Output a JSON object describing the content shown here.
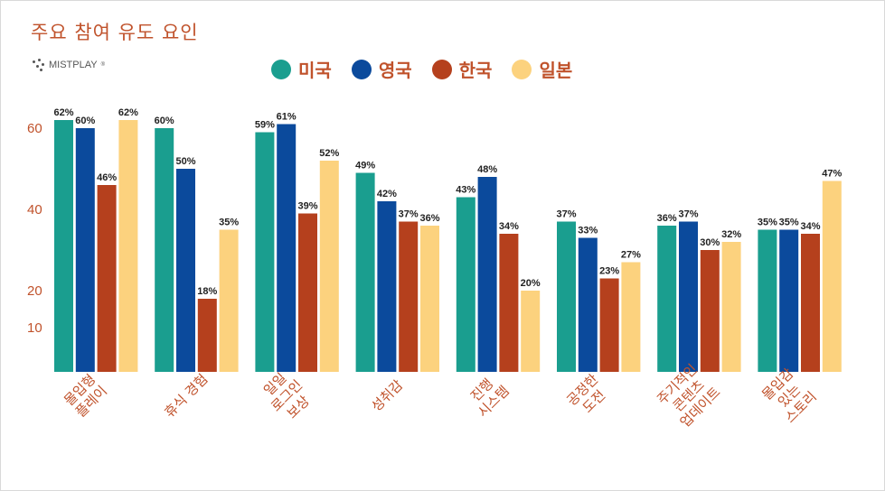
{
  "title": "주요 참여 유도 요인",
  "logo": {
    "text": "MISTPLAY",
    "mark": "®"
  },
  "colors": {
    "accent": "#c0522b"
  },
  "chart_data": {
    "type": "bar",
    "categories": [
      [
        "몰입형",
        "플레이"
      ],
      [
        "휴식 경험"
      ],
      [
        "일일",
        "로그인",
        "보상"
      ],
      [
        "성취감"
      ],
      [
        "진행",
        "시스템"
      ],
      [
        "공정한",
        "도전"
      ],
      [
        "주기적인",
        "콘텐츠",
        "업데이트"
      ],
      [
        "몰입감",
        "있는",
        "스토리"
      ]
    ],
    "series": [
      {
        "name": "미국",
        "color": "#1a9e8f",
        "values": [
          62,
          60,
          59,
          49,
          43,
          37,
          36,
          35
        ]
      },
      {
        "name": "영국",
        "color": "#0b4a9c",
        "values": [
          60,
          50,
          61,
          42,
          48,
          33,
          37,
          35
        ]
      },
      {
        "name": "한국",
        "color": "#b5401d",
        "values": [
          46,
          18,
          39,
          37,
          34,
          23,
          30,
          34
        ]
      },
      {
        "name": "일본",
        "color": "#fcd27e",
        "values": [
          62,
          35,
          52,
          36,
          20,
          27,
          32,
          47
        ]
      }
    ],
    "yticks": [
      10,
      20,
      40,
      60
    ],
    "value_suffix": "%",
    "ylim": [
      10,
      62
    ],
    "grid": false,
    "legend_position": "top-center"
  }
}
